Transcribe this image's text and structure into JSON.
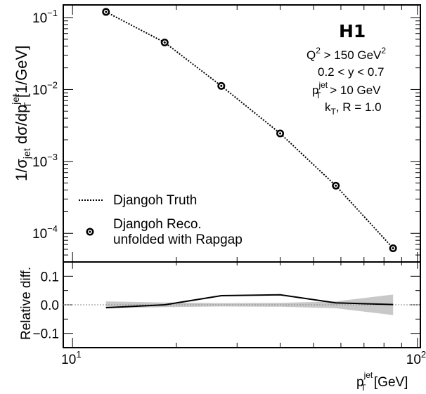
{
  "chart_data": [
    {
      "type": "scatter",
      "panel": "upper",
      "ylabel_parts": {
        "pre": "1/σ",
        "sub": "jet",
        "mid": " dσ/dp",
        "sup": "jet",
        "sub2": "T",
        "post": " [1/GeV]"
      },
      "yscale": "log",
      "ylim": [
        4e-05,
        0.15
      ],
      "xscale": "log",
      "xlim": [
        9.4,
        102
      ],
      "y_ticks": [
        {
          "value": 0.1,
          "label": "10",
          "exp": "−1"
        },
        {
          "value": 0.01,
          "label": "10",
          "exp": "−2"
        },
        {
          "value": 0.001,
          "label": "10",
          "exp": "−3"
        },
        {
          "value": 0.0001,
          "label": "10",
          "exp": "−4"
        }
      ],
      "series": [
        {
          "name": "Djangoh Truth",
          "style": "dotted-line",
          "x": [
            12.5,
            18.5,
            27,
            40,
            58,
            85
          ],
          "y": [
            0.12,
            0.045,
            0.0112,
            0.00245,
            0.00046,
            6.2e-05
          ]
        },
        {
          "name": "Djangoh Reco.",
          "name_line2": "unfolded with Rapgap",
          "style": "markers",
          "x": [
            12.5,
            18.5,
            27,
            40,
            58,
            85
          ],
          "y": [
            0.12,
            0.045,
            0.0112,
            0.00245,
            0.00046,
            6.2e-05
          ]
        }
      ],
      "legend_placement": "lower-left",
      "annotations": {
        "experiment": "H1",
        "q2": {
          "pre": "Q",
          "sup": "2",
          "mid": " > 150 GeV",
          "sup2": "2"
        },
        "y_range": "0.2 < y < 0.7",
        "pt_cut": {
          "pre": "p",
          "sup": "jet",
          "sub": "T",
          "post": " > 10 GeV"
        },
        "algo": {
          "pre": "k",
          "sub": "T",
          "post": ", R = 1.0"
        }
      }
    },
    {
      "type": "line",
      "panel": "ratio",
      "ylabel": "Relative diff.",
      "ylim": [
        -0.15,
        0.15
      ],
      "y_ticks": [
        {
          "value": 0.1,
          "label": "0.1"
        },
        {
          "value": 0.0,
          "label": "0.0"
        },
        {
          "value": -0.1,
          "label": "−0.1"
        }
      ],
      "xlabel_parts": {
        "pre": "p",
        "sup": "jet",
        "sub": "T",
        "post": " [GeV]"
      },
      "x_ticks": [
        {
          "value": 10,
          "label": "10",
          "exp": "1"
        },
        {
          "value": 100,
          "label": "10",
          "exp": "2"
        }
      ],
      "reference_line": 0.0,
      "series": [
        {
          "name": "relative difference",
          "x": [
            12.5,
            18.5,
            27,
            40,
            58,
            85
          ],
          "y": [
            -0.01,
            0.0,
            0.032,
            0.035,
            0.007,
            0.001
          ]
        }
      ],
      "uncertainty_band": {
        "x": [
          12.5,
          18.5,
          27,
          40,
          58,
          85
        ],
        "halfwidth": [
          0.012,
          0.008,
          0.006,
          0.007,
          0.012,
          0.036
        ]
      }
    }
  ]
}
